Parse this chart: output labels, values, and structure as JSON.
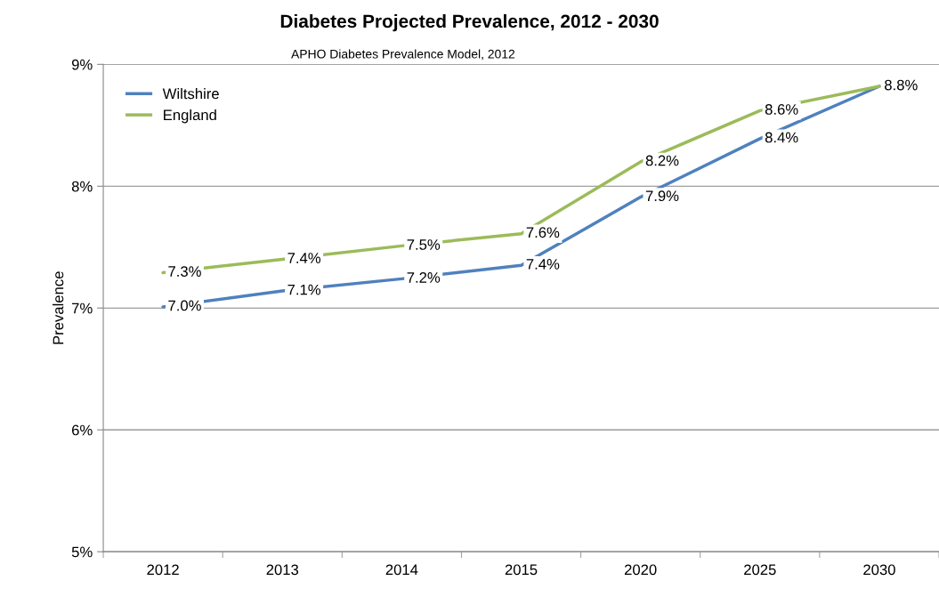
{
  "chart_data": {
    "type": "line",
    "title": "Diabetes Projected Prevalence, 2012 - 2030",
    "subtitle": "APHO Diabetes Prevalence Model, 2012",
    "ylabel": "Prevalence",
    "categories": [
      "2012",
      "2013",
      "2014",
      "2015",
      "2020",
      "2025",
      "2030"
    ],
    "series": [
      {
        "name": "Wiltshire",
        "color": "#4f81bd",
        "values": [
          7.01,
          7.14,
          7.24,
          7.35,
          7.91,
          8.39,
          8.82
        ],
        "value_labels": [
          "7.0%",
          "7.1%",
          "7.2%",
          "7.4%",
          "7.9%",
          "8.4%",
          "8.8%"
        ]
      },
      {
        "name": "England",
        "color": "#9bbb59",
        "values": [
          7.29,
          7.4,
          7.51,
          7.61,
          8.2,
          8.62,
          8.82
        ],
        "value_labels": [
          "7.3%",
          "7.4%",
          "7.5%",
          "7.6%",
          "8.2%",
          "8.6%",
          null
        ]
      }
    ],
    "ylim": [
      5,
      9
    ],
    "yticks": [
      {
        "value": 5,
        "label": "5%"
      },
      {
        "value": 6,
        "label": "6%"
      },
      {
        "value": 7,
        "label": "7%"
      },
      {
        "value": 8,
        "label": "8%"
      },
      {
        "value": 9,
        "label": "9%"
      }
    ],
    "grid": "y",
    "legend": "top left",
    "marker": "none",
    "line_style": "solid"
  }
}
